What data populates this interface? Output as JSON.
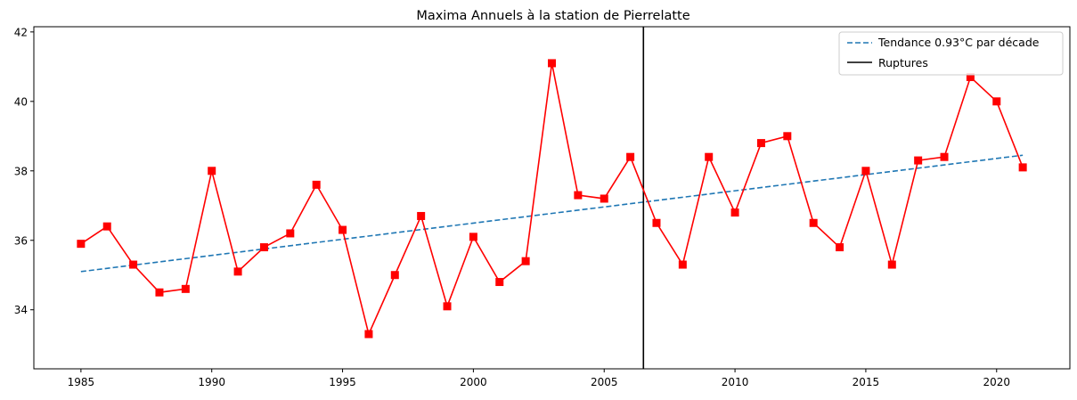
{
  "chart_data": {
    "type": "line",
    "title": "Maxima Annuels à la station de Pierrelatte",
    "xlabel": "",
    "ylabel": "",
    "xlim": [
      1983.2,
      2022.8
    ],
    "ylim": [
      32.3,
      42.15
    ],
    "x_ticks": [
      1985,
      1990,
      1995,
      2000,
      2005,
      2010,
      2015,
      2020
    ],
    "y_ticks": [
      34,
      36,
      38,
      40,
      42
    ],
    "grid": false,
    "legend_position": "top-right",
    "colors": {
      "series": "#ff0000",
      "trend": "#1f77b4",
      "rupture": "#000000"
    },
    "series": [
      {
        "x": [
          1985,
          1986,
          1987,
          1988,
          1989,
          1990,
          1991,
          1992,
          1993,
          1994,
          1995,
          1996,
          1997,
          1998,
          1999,
          2000,
          2001,
          2002,
          2003,
          2004,
          2005,
          2006,
          2007,
          2008,
          2009,
          2010,
          2011,
          2012,
          2013,
          2014,
          2015,
          2016,
          2017,
          2018,
          2019,
          2020,
          2021
        ],
        "values": [
          35.9,
          36.4,
          35.3,
          34.5,
          34.6,
          38.0,
          35.1,
          35.8,
          36.2,
          37.6,
          36.3,
          33.3,
          35.0,
          36.7,
          34.1,
          36.1,
          34.8,
          35.4,
          41.1,
          37.3,
          37.2,
          38.4,
          36.5,
          35.3,
          38.4,
          36.8,
          38.8,
          39.0,
          36.5,
          35.8,
          38.0,
          35.3,
          38.3,
          38.4,
          40.7,
          40.0,
          38.1
        ],
        "marker": "square",
        "color": "#ff0000"
      }
    ],
    "trend": {
      "name": "Tendance 0.93°C par décade",
      "x": [
        1985,
        2021
      ],
      "values": [
        35.1,
        38.45
      ],
      "style": "dashed",
      "color": "#1f77b4"
    },
    "rupture": {
      "name": "Ruptures",
      "x": 2006.5,
      "color": "#000000"
    },
    "legend": [
      "Tendance 0.93°C par décade",
      "Ruptures"
    ]
  }
}
